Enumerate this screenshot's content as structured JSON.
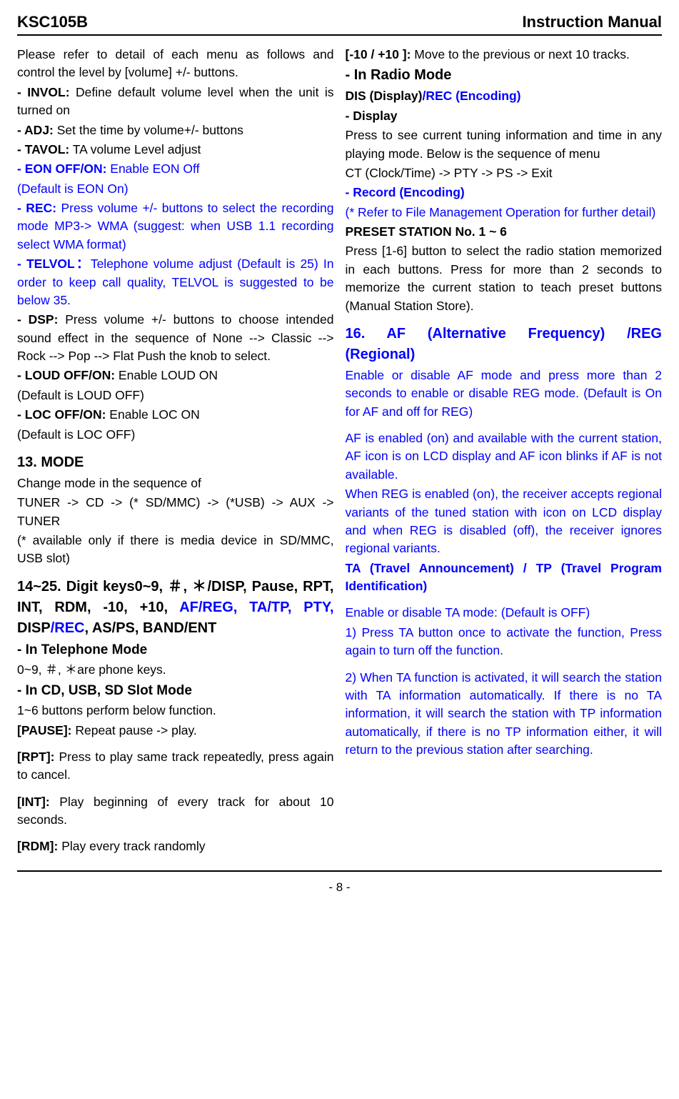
{
  "header": {
    "left": "KSC105B",
    "right": "Instruction Manual"
  },
  "left_col": {
    "intro1": "Please refer to detail of each menu as follows and control the level by [volume] +/- buttons.",
    "invol_label": "- INVOL:",
    "invol_text": " Define default volume level when the unit is turned on",
    "adj_label": "- ADJ:",
    "adj_text": " Set the time by volume+/- buttons",
    "tavol_label": "- TAVOL:",
    "tavol_text": " TA volume Level adjust",
    "eon_label": "- EON OFF/ON:",
    "eon_text": " Enable EON Off",
    "eon_default": "(Default is EON On)",
    "rec_label": "- REC:",
    "rec_text": " Press volume +/- buttons to select the recording mode MP3-> WMA (suggest: when USB 1.1 recording select WMA format)",
    "telvol_label": "- TELVOL：",
    "telvol_text": "Telephone volume adjust (Default is 25) In order to keep call quality, TELVOL is suggested to be below 35.",
    "dsp_label": "- DSP:",
    "dsp_text": " Press volume +/- buttons to choose intended sound effect in the sequence of None --> Classic --> Rock --> Pop --> Flat Push the knob to select.",
    "loud_label": "- LOUD OFF/ON:",
    "loud_text": " Enable LOUD ON",
    "loud_default": "(Default is LOUD OFF)",
    "loc_label": "- LOC OFF/ON:",
    "loc_text": " Enable LOC ON",
    "loc_default": "(Default is LOC OFF)",
    "mode_title": "13. MODE",
    "mode_line1": "Change mode in the sequence of",
    "mode_line2": "TUNER -> CD -> (* SD/MMC) -> (*USB) -> AUX -> TUNER",
    "mode_note": "(* available only if there is media device in SD/MMC, USB slot)",
    "keys_title_p1": "14~25. Digit keys0~9, ＃, ＊/DISP, Pause, RPT, INT, RDM, -10, +10, ",
    "keys_title_afreg": "AF/REG, TA/TP, PTY,",
    "keys_title_disp": " DISP",
    "keys_title_rec": "/REC",
    "keys_title_rest": ", AS/PS, BAND/ENT",
    "tel_mode_title": "- In Telephone Mode",
    "tel_mode_text": "0~9, ＃, ＊are phone keys.",
    "cd_mode_title": "- In CD, USB, SD Slot Mode",
    "cd_mode_text": "1~6 buttons perform below function.",
    "pause_label": "[PAUSE]:",
    "pause_text": " Repeat pause -> play.",
    "rpt_label": "[RPT]:",
    "rpt_text": " Press to play same track repeatedly, press again to cancel.",
    "int_label": "[INT]:",
    "int_text": " Play beginning of every track for about 10 seconds.",
    "rdm_label": "[RDM]:",
    "rdm_text": " Play every track randomly"
  },
  "right_col": {
    "skip_label": "[-10 / +10 ]:",
    "skip_text": " Move to the previous or next 10 tracks.",
    "radio_title": "- In Radio Mode",
    "dis_label": "DIS (Display)",
    "dis_sep": "/",
    "rec_label": "REC (Encoding)",
    "display_title": "- Display",
    "display_text1": "Press to see current tuning information and time in any playing mode. Below is the sequence of menu",
    "display_text2": "CT (Clock/Time) -> PTY -> PS -> Exit",
    "record_title": "- Record (Encoding)",
    "record_text": "(* Refer to File Management Operation for further detail)",
    "preset_title": "PRESET STATION No. 1 ~ 6",
    "preset_text": "Press [1-6] button to select the radio station memorized in each buttons. Press for more than 2 seconds to memorize the current station to teach preset buttons (Manual Station Store).",
    "af_title": "16. AF (Alternative Frequency) /REG (Regional)",
    "af_text1": "Enable or disable AF mode and press more than 2 seconds to enable or disable REG mode. (Default is On for AF and off for REG)",
    "af_text2": "AF is enabled (on) and available with the current station, AF icon is on LCD display and AF icon blinks if AF is not available.",
    "af_text3": "When REG is enabled (on), the receiver accepts regional variants of the tuned station with icon on LCD display and when REG is disabled (off), the receiver ignores regional variants.",
    "ta_title": "TA (Travel Announcement) / TP (Travel Program Identification)",
    "ta_text1": "Enable or disable TA mode: (Default is OFF)",
    "ta_text2": "1) Press TA button once to activate the function, Press again to turn off the function.",
    "ta_text3": "2) When TA function is activated, it will search the station with TA information automatically. If there is no TA information, it will search the station with TP information automatically, if there is no TP information either, it will return to the previous station after searching."
  },
  "footer": {
    "page": "- 8 -"
  }
}
